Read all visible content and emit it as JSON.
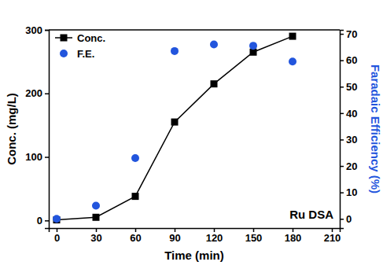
{
  "chart_data": {
    "type": "line",
    "x_label": "Time (min)",
    "y_label": "Conc. (mg/L)",
    "y2_label": "Faradaic Efficiency (%)",
    "annotations": [
      "Ru DSA"
    ],
    "x": [
      0,
      30,
      60,
      90,
      120,
      150,
      180
    ],
    "series": [
      {
        "name": "Conc.",
        "type": "line",
        "marker": "square",
        "color": "#000000",
        "values": [
          1,
          5,
          38,
          155,
          215,
          265,
          290
        ]
      },
      {
        "name": "F.E.",
        "type": "scatter",
        "marker": "circle",
        "color": "#2255dd",
        "axis": "y2",
        "values": [
          0,
          5,
          23,
          63.5,
          66,
          65.5,
          59.5
        ]
      }
    ],
    "xlim": [
      -6,
      216
    ],
    "xticks": [
      0,
      30,
      60,
      90,
      120,
      150,
      180,
      210
    ],
    "ylim": [
      -12,
      300
    ],
    "yticks": [
      0,
      100,
      200,
      300
    ],
    "y2lim": [
      -3.5,
      71.5
    ],
    "y2ticks": [
      0,
      10,
      20,
      30,
      40,
      50,
      60,
      70
    ],
    "legend": "upper-left",
    "grid": false
  }
}
